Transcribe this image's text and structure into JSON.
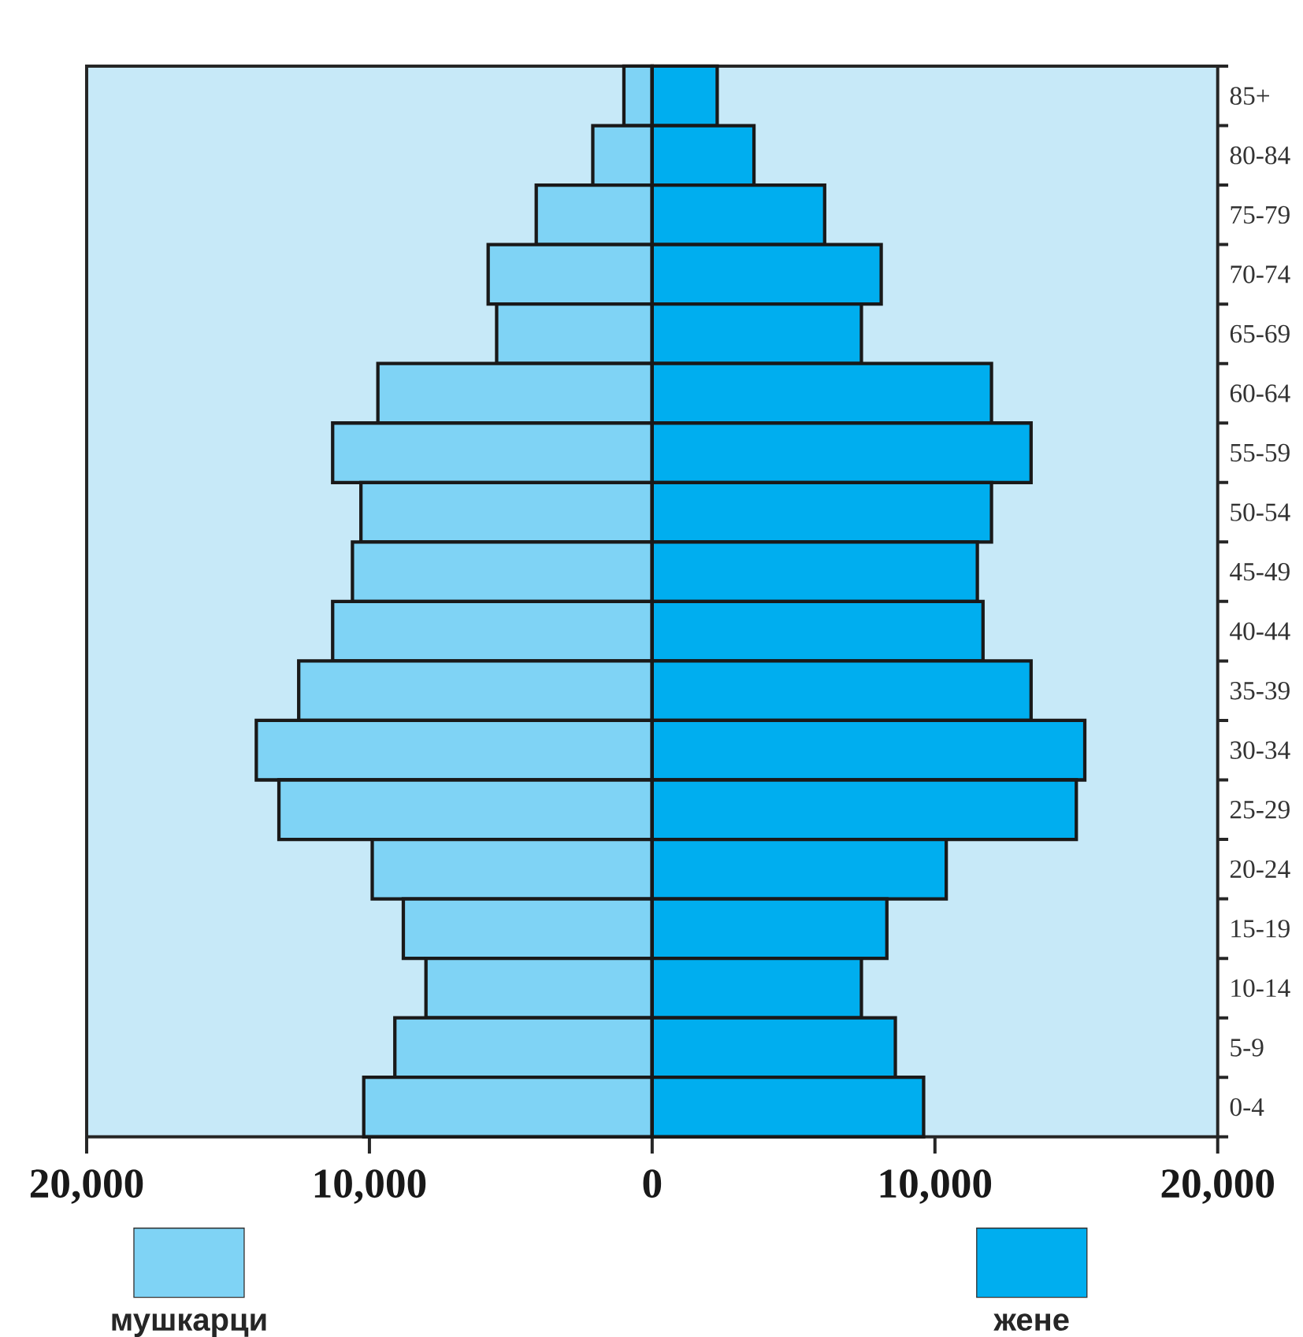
{
  "chart_data": {
    "type": "bar",
    "orientation": "horizontal",
    "stacked": true,
    "legend": "bottom",
    "categories": [
      "85+",
      "80-84",
      "75-79",
      "70-74",
      "65-69",
      "60-64",
      "55-59",
      "50-54",
      "45-49",
      "40-44",
      "35-39",
      "30-34",
      "25-29",
      "20-24",
      "15-19",
      "10-14",
      "5-9",
      "0-4"
    ],
    "series": [
      {
        "name": "мушкарци",
        "color": "#7fd3f5",
        "values": [
          -1000,
          -2100,
          -4100,
          -5800,
          -5500,
          -9700,
          -11300,
          -10300,
          -10600,
          -11300,
          -12500,
          -14000,
          -13200,
          -9900,
          -8800,
          -8000,
          -9100,
          -10200
        ]
      },
      {
        "name": "жене",
        "color": "#00aeef",
        "values": [
          2300,
          3600,
          6100,
          8100,
          7400,
          12000,
          13400,
          12000,
          11500,
          11700,
          13400,
          15300,
          15000,
          10400,
          8300,
          7400,
          8600,
          9600
        ]
      }
    ],
    "xlim": [
      -20000,
      20000
    ],
    "xticks": [
      {
        "value": -20000,
        "label": "20,000"
      },
      {
        "value": -10000,
        "label": "10,000"
      },
      0,
      {
        "value": 10000,
        "label": "10,000"
      },
      {
        "value": 20000,
        "label": "20,000"
      }
    ]
  }
}
